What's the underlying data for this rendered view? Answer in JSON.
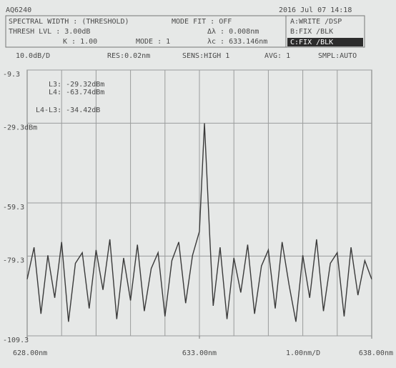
{
  "header": {
    "model": "AQ6240",
    "datetime": "2016 Jul 07 14:18",
    "rows": [
      [
        "SPECTRAL WIDTH : (THRESHOLD)",
        "MODE FIT : OFF"
      ],
      [
        "THRESH LVL : 3.00dB",
        "Δλ : 0.008nm"
      ],
      [
        "K : 1.00",
        "MODE : 1",
        "λc : 633.146nm"
      ]
    ],
    "traces": [
      "A:WRITE /DSP",
      "B:FIX /BLK",
      "C:FIX /BLK"
    ],
    "status": [
      "10.0dB/D",
      "RES:0.02nm",
      "SENS:HIGH 1",
      "AVG: 1",
      "SMPL:AUTO"
    ]
  },
  "chart_data": {
    "type": "line",
    "x": [
      628.0,
      628.2,
      628.4,
      628.6,
      628.8,
      629.0,
      629.2,
      629.4,
      629.6,
      629.8,
      630.0,
      630.2,
      630.4,
      630.6,
      630.8,
      631.0,
      631.2,
      631.4,
      631.6,
      631.8,
      632.0,
      632.2,
      632.4,
      632.6,
      632.8,
      633.0,
      633.146,
      633.3,
      633.4,
      633.6,
      633.8,
      634.0,
      634.2,
      634.4,
      634.6,
      634.8,
      635.0,
      635.2,
      635.4,
      635.6,
      635.8,
      636.0,
      636.2,
      636.4,
      636.6,
      636.8,
      637.0,
      637.2,
      637.4,
      637.6,
      637.8,
      638.0
    ],
    "series": [
      {
        "color": "#3a3a3a",
        "values": [
          -88,
          -76,
          -101,
          -79,
          -95,
          -74,
          -104,
          -82,
          -78,
          -99,
          -77,
          -92,
          -73,
          -103,
          -80,
          -96,
          -75,
          -100,
          -84,
          -78,
          -102,
          -81,
          -74,
          -97,
          -79,
          -70,
          -29.32,
          -72,
          -98,
          -76,
          -103,
          -80,
          -93,
          -75,
          -101,
          -83,
          -77,
          -99,
          -74,
          -90,
          -104,
          -79,
          -95,
          -73,
          -100,
          -82,
          -78,
          -102,
          -76,
          -94,
          -81,
          -88
        ]
      }
    ],
    "xlim": [
      628,
      638
    ],
    "xticks": [
      {
        "value": 628,
        "label": "628.00nm"
      },
      {
        "value": 633,
        "label": "633.00nm"
      },
      {
        "value": 638,
        "label": "638.00nm"
      }
    ],
    "ylim": [
      -109.3,
      -9.3
    ],
    "yticks": [
      -9.3,
      {
        "value": -29.3,
        "label": "-29.3dBm"
      },
      -59.3,
      -79.3,
      -109.3
    ],
    "x_scale_label": "1.00nm/D",
    "annotations": [
      "L3: -29.32dBm",
      "L4: -63.74dBm",
      "L4-L3: -34.42dB"
    ],
    "grid": true
  }
}
